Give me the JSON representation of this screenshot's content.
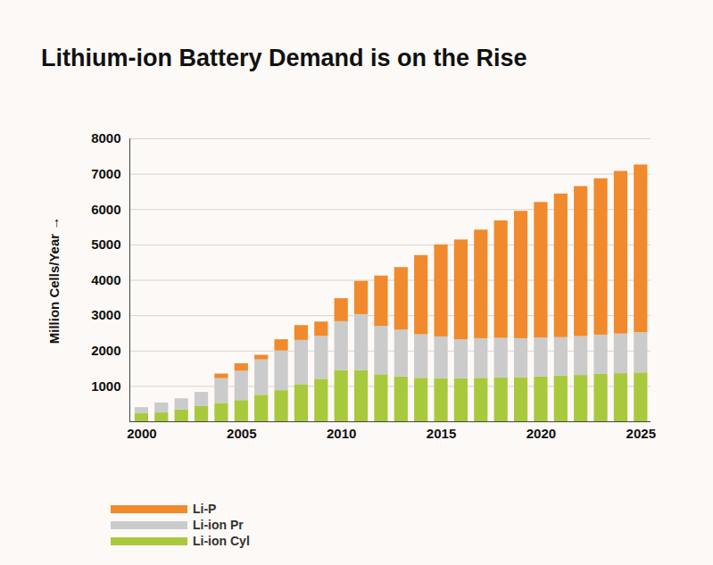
{
  "chart_data": {
    "type": "bar",
    "title": "Lithium-ion Battery Demand is on the Rise",
    "y_label": "Million Cells/Year",
    "stacked": true,
    "grid": true,
    "legend": "bottom-left",
    "x": [
      2000,
      2001,
      2002,
      2003,
      2004,
      2005,
      2006,
      2007,
      2008,
      2009,
      2010,
      2011,
      2012,
      2013,
      2014,
      2015,
      2016,
      2017,
      2018,
      2019,
      2020,
      2021,
      2022,
      2023,
      2024,
      2025
    ],
    "xlim": [
      1999.4,
      2025.5
    ],
    "xticks": [
      2000,
      2005,
      2010,
      2015,
      2020,
      2025
    ],
    "ylim": [
      0,
      8000
    ],
    "yticks": [
      1000,
      2000,
      3000,
      4000,
      5000,
      6000,
      7000,
      8000
    ],
    "series": [
      {
        "name": "Li-P",
        "color": "#f08a2c",
        "values": [
          0,
          0,
          0,
          0,
          130,
          210,
          130,
          320,
          420,
          400,
          650,
          940,
          1420,
          1770,
          2240,
          2600,
          2820,
          3070,
          3320,
          3600,
          3830,
          4060,
          4240,
          4420,
          4600,
          4740
        ]
      },
      {
        "name": "Li-ion Pr",
        "color": "#cbcbcb",
        "values": [
          170,
          280,
          320,
          400,
          700,
          830,
          1000,
          1120,
          1250,
          1220,
          1380,
          1580,
          1370,
          1320,
          1230,
          1180,
          1100,
          1120,
          1120,
          1100,
          1100,
          1090,
          1100,
          1110,
          1120,
          1140
        ]
      },
      {
        "name": "Li-ion Cyl",
        "color": "#a9c93c",
        "values": [
          230,
          250,
          330,
          430,
          520,
          600,
          750,
          880,
          1050,
          1200,
          1450,
          1450,
          1330,
          1270,
          1230,
          1220,
          1220,
          1230,
          1240,
          1250,
          1270,
          1290,
          1310,
          1340,
          1360,
          1380
        ]
      }
    ]
  }
}
